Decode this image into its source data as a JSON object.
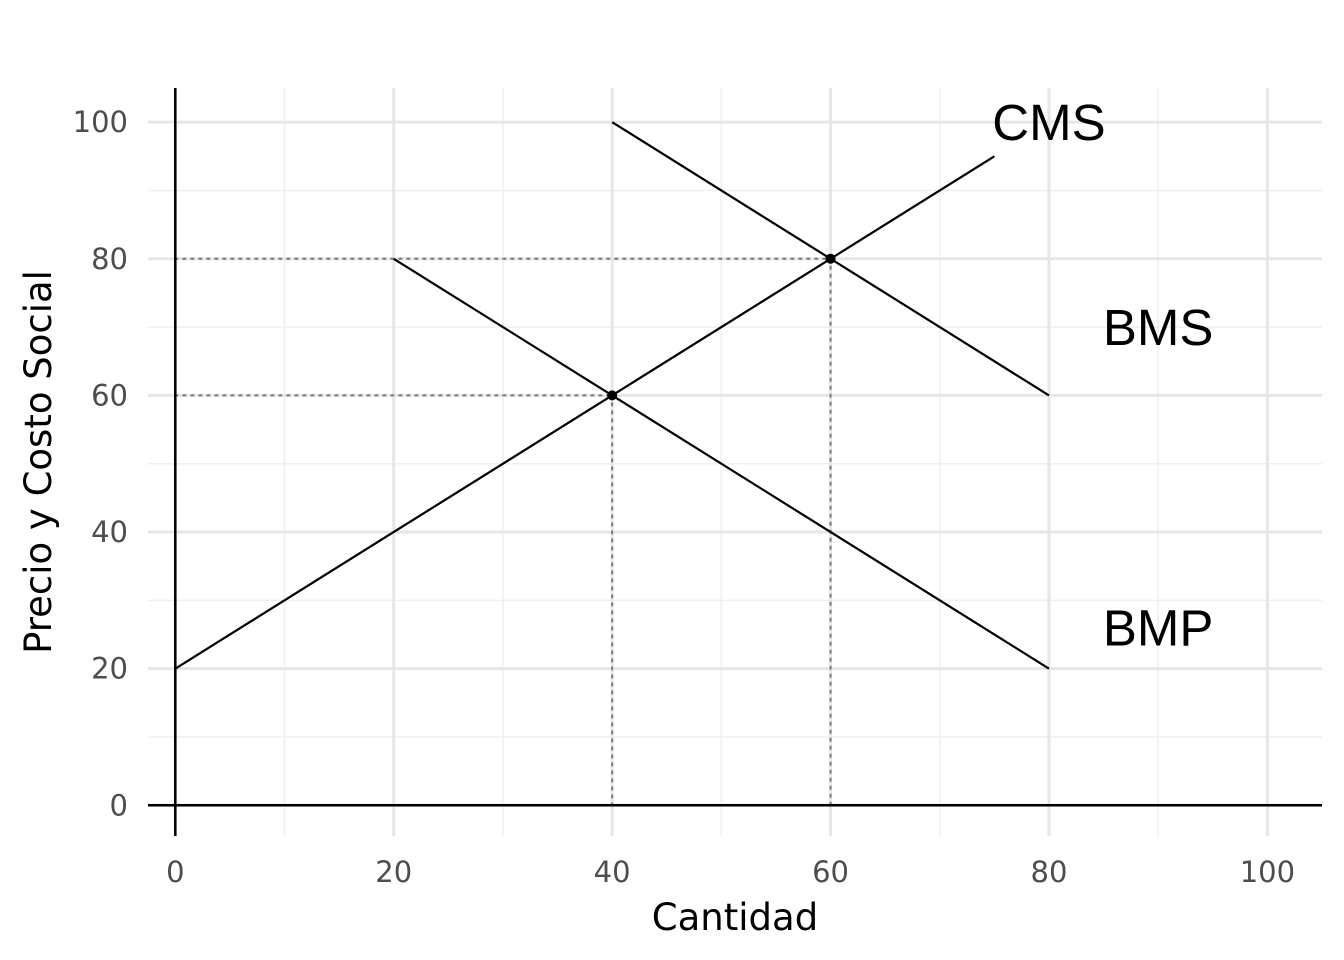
{
  "chart_data": {
    "type": "line",
    "xlabel": "Cantidad",
    "ylabel": "Precio y Costo Social",
    "xlim": [
      -2.5,
      105
    ],
    "ylim": [
      -4.5,
      105
    ],
    "x_ticks": [
      0,
      20,
      40,
      60,
      80,
      100
    ],
    "y_ticks": [
      0,
      20,
      40,
      60,
      80,
      100
    ],
    "x_tick_labels": [
      "0",
      "20",
      "40",
      "60",
      "80",
      "100"
    ],
    "y_tick_labels": [
      "0",
      "20",
      "40",
      "60",
      "80",
      "100"
    ],
    "grid": true,
    "series": [
      {
        "name": "CMS",
        "points": [
          [
            0,
            20
          ],
          [
            75,
            95
          ]
        ]
      },
      {
        "name": "BMS",
        "points": [
          [
            40,
            100
          ],
          [
            80,
            60
          ]
        ]
      },
      {
        "name": "BMP",
        "points": [
          [
            20,
            80
          ],
          [
            80,
            20
          ]
        ]
      }
    ],
    "curve_labels": [
      {
        "text": "CMS",
        "x": 80,
        "y": 100
      },
      {
        "text": "BMS",
        "x": 90,
        "y": 70
      },
      {
        "text": "BMP",
        "x": 90,
        "y": 26
      }
    ],
    "equilibria": [
      {
        "x": 40,
        "y": 60
      },
      {
        "x": 60,
        "y": 80
      }
    ]
  }
}
